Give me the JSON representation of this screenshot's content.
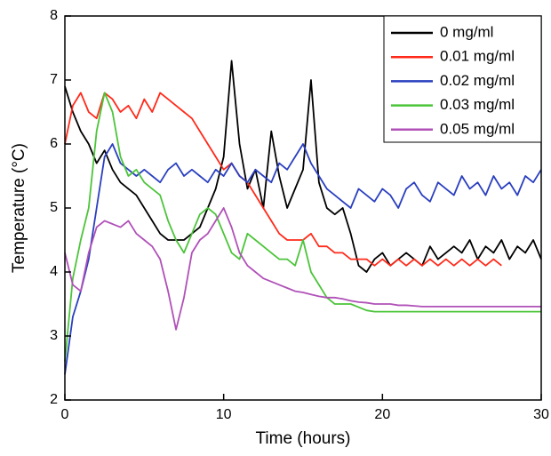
{
  "chart_data": {
    "type": "line",
    "xlabel": "Time (hours)",
    "ylabel": "Temperature (°C)",
    "xlim": [
      0,
      30
    ],
    "xticks": [
      0,
      10,
      20,
      30
    ],
    "ylim": [
      2,
      8
    ],
    "yticks": [
      2,
      3,
      4,
      5,
      6,
      7,
      8
    ],
    "legend": "upper right",
    "x": [
      0,
      0.5,
      1,
      1.5,
      2,
      2.5,
      3,
      3.5,
      4,
      4.5,
      5,
      5.5,
      6,
      6.5,
      7,
      7.5,
      8,
      8.5,
      9,
      9.5,
      10,
      10.5,
      11,
      11.5,
      12,
      12.5,
      13,
      13.5,
      14,
      14.5,
      15,
      15.5,
      16,
      16.5,
      17,
      17.5,
      18,
      18.5,
      19,
      19.5,
      20,
      20.5,
      21,
      21.5,
      22,
      22.5,
      23,
      23.5,
      24,
      24.5,
      25,
      25.5,
      26,
      26.5,
      27,
      27.5,
      28,
      28.5,
      29,
      29.5,
      30
    ],
    "series": [
      {
        "name": "0 mg/ml",
        "color": "#000000",
        "values": [
          6.9,
          6.5,
          6.2,
          6.0,
          5.7,
          5.9,
          5.6,
          5.4,
          5.3,
          5.2,
          5.0,
          4.8,
          4.6,
          4.5,
          4.5,
          4.5,
          4.6,
          4.7,
          5.0,
          5.3,
          5.8,
          7.3,
          6.0,
          5.3,
          5.6,
          5.0,
          6.2,
          5.5,
          5.0,
          5.3,
          5.6,
          7.0,
          5.4,
          5.0,
          4.9,
          5.0,
          4.6,
          4.1,
          4.0,
          4.2,
          4.3,
          4.1,
          4.2,
          4.3,
          4.2,
          4.1,
          4.4,
          4.2,
          4.3,
          4.4,
          4.3,
          4.5,
          4.2,
          4.4,
          4.3,
          4.5,
          4.2,
          4.4,
          4.3,
          4.5,
          4.2
        ]
      },
      {
        "name": "0.01 mg/ml",
        "color": "#ff2a1a",
        "values": [
          6.0,
          6.6,
          6.8,
          6.5,
          6.4,
          6.8,
          6.7,
          6.5,
          6.6,
          6.4,
          6.7,
          6.5,
          6.8,
          6.7,
          6.6,
          6.5,
          6.4,
          6.2,
          6.0,
          5.8,
          5.6,
          5.7,
          5.5,
          5.4,
          5.2,
          5.0,
          4.8,
          4.6,
          4.5,
          4.5,
          4.5,
          4.6,
          4.4,
          4.4,
          4.3,
          4.3,
          4.2,
          4.2,
          4.2,
          4.1,
          4.2,
          4.1,
          4.2,
          4.1,
          4.2,
          4.1,
          4.2,
          4.1,
          4.2,
          4.1,
          4.2,
          4.1,
          4.2,
          4.1,
          4.2,
          4.1,
          null,
          null,
          null,
          null,
          null
        ]
      },
      {
        "name": "0.02 mg/ml",
        "color": "#2a3fbf",
        "values": [
          2.4,
          3.3,
          3.7,
          4.2,
          5.0,
          5.8,
          6.0,
          5.7,
          5.6,
          5.5,
          5.6,
          5.5,
          5.4,
          5.6,
          5.7,
          5.5,
          5.6,
          5.5,
          5.4,
          5.6,
          5.5,
          5.7,
          5.5,
          5.4,
          5.6,
          5.5,
          5.4,
          5.7,
          5.6,
          5.8,
          6.0,
          5.7,
          5.5,
          5.3,
          5.2,
          5.1,
          5.0,
          5.3,
          5.2,
          5.1,
          5.3,
          5.2,
          5.0,
          5.3,
          5.4,
          5.2,
          5.1,
          5.4,
          5.3,
          5.2,
          5.5,
          5.3,
          5.4,
          5.2,
          5.5,
          5.3,
          5.4,
          5.2,
          5.5,
          5.4,
          5.6
        ]
      },
      {
        "name": "0.03 mg/ml",
        "color": "#4cc43a",
        "values": [
          2.6,
          3.9,
          4.5,
          5.0,
          6.2,
          6.8,
          6.5,
          5.8,
          5.5,
          5.6,
          5.4,
          5.3,
          5.2,
          4.8,
          4.5,
          4.3,
          4.6,
          4.9,
          5.0,
          4.9,
          4.6,
          4.3,
          4.2,
          4.6,
          4.5,
          4.4,
          4.3,
          4.2,
          4.2,
          4.1,
          4.5,
          4.0,
          3.8,
          3.6,
          3.5,
          3.5,
          3.5,
          3.45,
          3.4,
          3.38,
          3.38,
          3.38,
          3.38,
          3.38,
          3.38,
          3.38,
          3.38,
          3.38,
          3.38,
          3.38,
          3.38,
          3.38,
          3.38,
          3.38,
          3.38,
          3.38,
          3.38,
          3.38,
          3.38,
          3.38,
          3.38
        ]
      },
      {
        "name": "0.05 mg/ml",
        "color": "#b050b8",
        "values": [
          4.3,
          3.8,
          3.7,
          4.3,
          4.7,
          4.8,
          4.75,
          4.7,
          4.8,
          4.6,
          4.5,
          4.4,
          4.2,
          3.7,
          3.1,
          3.6,
          4.3,
          4.5,
          4.6,
          4.8,
          5.0,
          4.7,
          4.3,
          4.1,
          4.0,
          3.9,
          3.85,
          3.8,
          3.75,
          3.7,
          3.68,
          3.65,
          3.62,
          3.6,
          3.6,
          3.58,
          3.55,
          3.53,
          3.52,
          3.5,
          3.5,
          3.5,
          3.48,
          3.48,
          3.47,
          3.46,
          3.46,
          3.46,
          3.46,
          3.46,
          3.46,
          3.46,
          3.46,
          3.46,
          3.46,
          3.46,
          3.46,
          3.46,
          3.46,
          3.46,
          3.46
        ]
      }
    ]
  }
}
